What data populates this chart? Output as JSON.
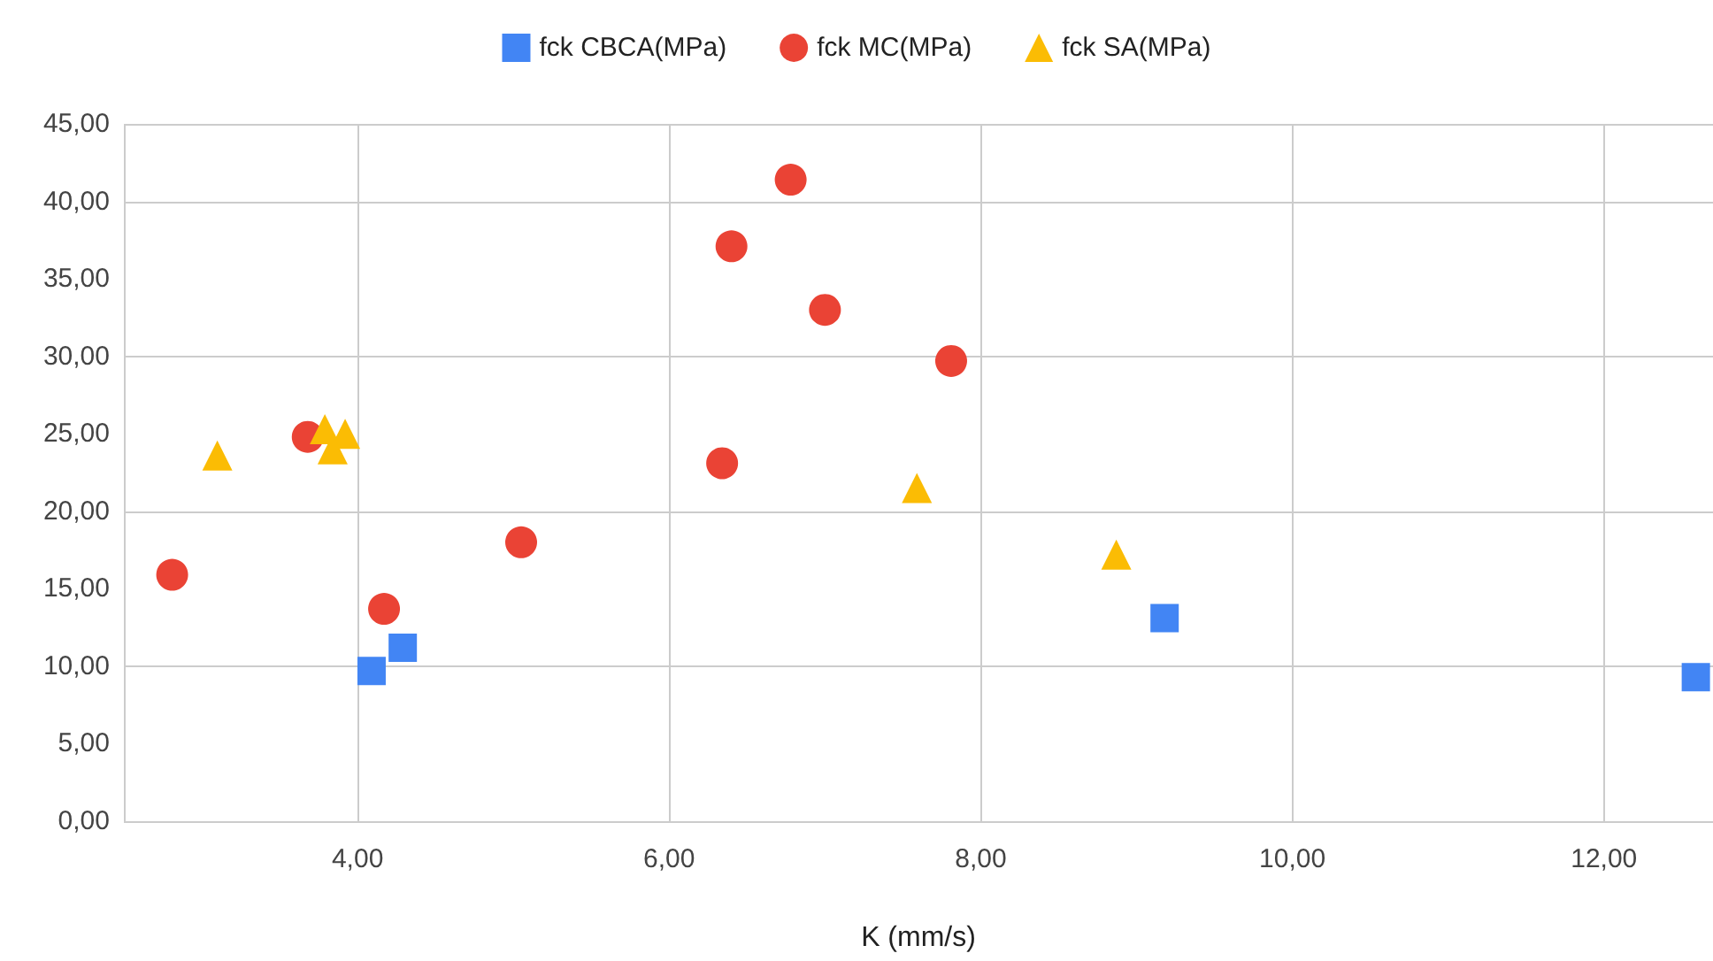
{
  "chart_data": {
    "type": "scatter",
    "xlabel": "K (mm/s)",
    "legend": "top",
    "grid": true,
    "xlim": [
      2.5,
      12.7
    ],
    "xticks": [
      {
        "value": 4,
        "label": "4,00"
      },
      {
        "value": 6,
        "label": "6,00"
      },
      {
        "value": 8,
        "label": "8,00"
      },
      {
        "value": 10,
        "label": "10,00"
      },
      {
        "value": 12,
        "label": "12,00"
      }
    ],
    "ylim": [
      0,
      45
    ],
    "yticks": [
      {
        "value": 0,
        "label": "0,00"
      },
      {
        "value": 5,
        "label": "5,00"
      },
      {
        "value": 10,
        "label": "10,00"
      },
      {
        "value": 15,
        "label": "15,00"
      },
      {
        "value": 20,
        "label": "20,00"
      },
      {
        "value": 25,
        "label": "25,00"
      },
      {
        "value": 30,
        "label": "30,00"
      },
      {
        "value": 35,
        "label": "35,00"
      },
      {
        "value": 40,
        "label": "40,00"
      },
      {
        "value": 45,
        "label": "45,00"
      }
    ],
    "series": [
      {
        "name": "fck CBCA(MPa)",
        "color": "#4285f4",
        "marker": "square",
        "x": [
          4.09,
          4.29,
          9.18,
          12.59
        ],
        "values": [
          9.7,
          11.2,
          13.1,
          9.3
        ]
      },
      {
        "name": "fck MC(MPa)",
        "color": "#ea4335",
        "marker": "circle",
        "x": [
          2.81,
          3.68,
          4.17,
          5.05,
          6.34,
          6.4,
          6.78,
          7.0,
          7.81
        ],
        "values": [
          15.9,
          24.8,
          13.7,
          18.0,
          23.1,
          37.1,
          41.4,
          33.0,
          29.7
        ]
      },
      {
        "name": "fck SA(MPa)",
        "color": "#fbbc04",
        "marker": "triangle",
        "x": [
          3.1,
          3.79,
          3.92,
          3.84,
          7.59,
          8.87
        ],
        "values": [
          23.6,
          25.3,
          25.0,
          24.0,
          21.5,
          17.2
        ]
      }
    ]
  }
}
